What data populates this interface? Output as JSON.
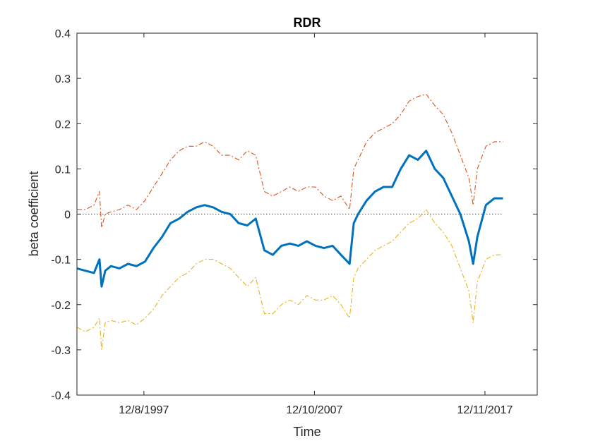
{
  "chart_data": {
    "type": "line",
    "title": "RDR",
    "xlabel": "Time",
    "ylabel": "beta coefficient",
    "xlim": [
      "1994-01-03",
      "2021-01-04"
    ],
    "ylim": [
      -0.4,
      0.4
    ],
    "yticks": [
      -0.4,
      -0.3,
      -0.2,
      -0.1,
      0,
      0.1,
      0.2,
      0.3,
      0.4
    ],
    "ytick_labels": [
      "-0.4",
      "-0.3",
      "-0.2",
      "-0.1",
      "0",
      "0.1",
      "0.2",
      "0.3",
      "0.4"
    ],
    "xticks": [
      {
        "date": "1997-12-08",
        "label": "12/8/1997"
      },
      {
        "date": "2007-12-10",
        "label": "12/10/2007"
      },
      {
        "date": "2017-12-11",
        "label": "12/11/2017"
      }
    ],
    "grid": false,
    "legend": "none",
    "x": [
      "1994-01-03",
      "1994-07-01",
      "1995-01-02",
      "1995-05-01",
      "1995-06-15",
      "1995-09-01",
      "1996-01-01",
      "1996-07-01",
      "1997-01-01",
      "1997-07-01",
      "1998-01-01",
      "1998-07-01",
      "1999-01-01",
      "1999-07-01",
      "2000-01-01",
      "2000-07-01",
      "2001-01-01",
      "2001-07-01",
      "2002-01-01",
      "2002-07-01",
      "2003-01-01",
      "2003-07-01",
      "2004-01-01",
      "2004-07-01",
      "2005-01-01",
      "2005-07-01",
      "2006-01-01",
      "2006-07-01",
      "2007-01-01",
      "2007-07-01",
      "2008-01-01",
      "2008-07-01",
      "2009-01-01",
      "2009-07-01",
      "2010-01-01",
      "2010-04-01",
      "2010-07-01",
      "2011-01-01",
      "2011-07-01",
      "2012-01-01",
      "2012-07-01",
      "2013-01-01",
      "2013-07-01",
      "2014-01-01",
      "2014-07-01",
      "2015-01-01",
      "2015-07-01",
      "2016-01-01",
      "2016-07-01",
      "2017-01-01",
      "2017-04-01",
      "2017-07-01",
      "2018-01-01",
      "2018-07-01",
      "2019-01-01"
    ],
    "series": [
      {
        "color": "#0072bd",
        "style": "solid",
        "values": [
          -0.12,
          -0.125,
          -0.13,
          -0.1,
          -0.16,
          -0.125,
          -0.115,
          -0.12,
          -0.11,
          -0.115,
          -0.105,
          -0.075,
          -0.05,
          -0.02,
          -0.01,
          0.005,
          0.015,
          0.02,
          0.015,
          0.005,
          0.0,
          -0.02,
          -0.025,
          -0.01,
          -0.08,
          -0.09,
          -0.07,
          -0.065,
          -0.07,
          -0.06,
          -0.07,
          -0.075,
          -0.07,
          -0.09,
          -0.11,
          -0.02,
          0.0,
          0.03,
          0.05,
          0.06,
          0.06,
          0.1,
          0.13,
          0.12,
          0.14,
          0.1,
          0.08,
          0.04,
          0.0,
          -0.06,
          -0.11,
          -0.05,
          0.02,
          0.035,
          0.035
        ]
      },
      {
        "color": "#d95319",
        "style": "dashdot",
        "values": [
          0.01,
          0.01,
          0.02,
          0.05,
          -0.03,
          0.0,
          0.005,
          0.01,
          0.02,
          0.01,
          0.03,
          0.06,
          0.09,
          0.12,
          0.14,
          0.15,
          0.15,
          0.16,
          0.15,
          0.13,
          0.13,
          0.12,
          0.14,
          0.13,
          0.05,
          0.04,
          0.05,
          0.06,
          0.05,
          0.06,
          0.06,
          0.04,
          0.03,
          0.04,
          0.01,
          0.1,
          0.12,
          0.16,
          0.18,
          0.19,
          0.2,
          0.22,
          0.25,
          0.26,
          0.265,
          0.24,
          0.22,
          0.18,
          0.13,
          0.08,
          0.02,
          0.1,
          0.15,
          0.16,
          0.16
        ]
      },
      {
        "color": "#edb120",
        "style": "dashdot",
        "values": [
          -0.25,
          -0.26,
          -0.25,
          -0.23,
          -0.3,
          -0.24,
          -0.235,
          -0.24,
          -0.235,
          -0.245,
          -0.23,
          -0.21,
          -0.18,
          -0.16,
          -0.14,
          -0.13,
          -0.11,
          -0.1,
          -0.1,
          -0.11,
          -0.12,
          -0.14,
          -0.16,
          -0.14,
          -0.22,
          -0.22,
          -0.2,
          -0.19,
          -0.2,
          -0.18,
          -0.19,
          -0.19,
          -0.18,
          -0.2,
          -0.23,
          -0.14,
          -0.12,
          -0.1,
          -0.08,
          -0.07,
          -0.06,
          -0.04,
          -0.02,
          -0.01,
          0.01,
          -0.02,
          -0.04,
          -0.07,
          -0.12,
          -0.17,
          -0.24,
          -0.15,
          -0.1,
          -0.09,
          -0.09
        ]
      },
      {
        "color": "#ff0000",
        "style": "dotted",
        "values": [
          0,
          0,
          0,
          0,
          0,
          0,
          0,
          0,
          0,
          0,
          0,
          0,
          0,
          0,
          0,
          0,
          0,
          0,
          0,
          0,
          0,
          0,
          0,
          0,
          0,
          0,
          0,
          0,
          0,
          0,
          0,
          0,
          0,
          0,
          0,
          0,
          0,
          0,
          0,
          0,
          0,
          0,
          0,
          0,
          0,
          0,
          0,
          0,
          0,
          0,
          0,
          0,
          0,
          0,
          0
        ]
      }
    ]
  }
}
